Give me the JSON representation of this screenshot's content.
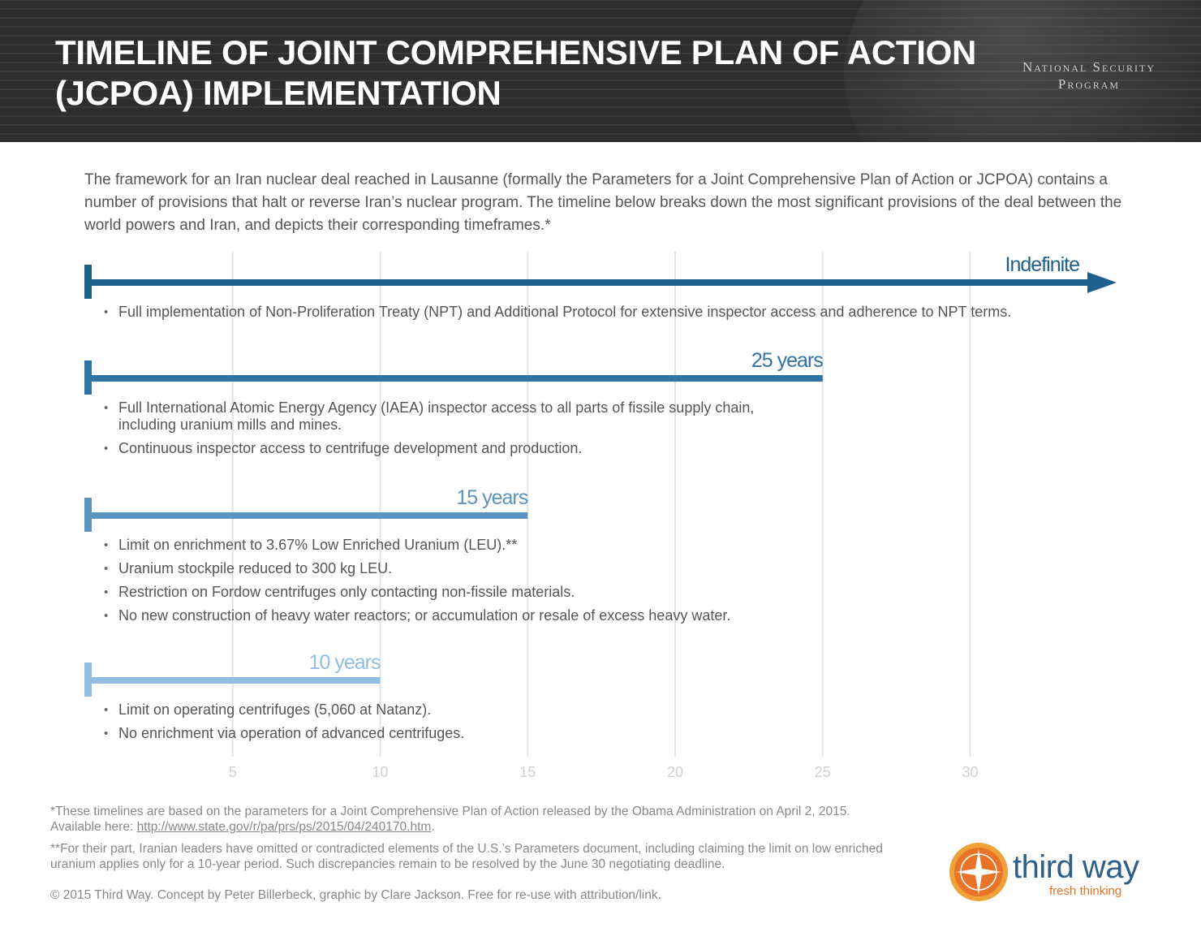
{
  "header": {
    "title_line1": "TIMELINE OF JOINT COMPREHENSIVE PLAN OF ACTION",
    "title_line2": "(JCPOA) IMPLEMENTATION",
    "org_line1": "National Security",
    "org_line2": "Program"
  },
  "intro": "The framework for an Iran nuclear deal reached in Lausanne (formally the Parameters for a Joint Comprehensive Plan of Action or JCPOA) contains a number of provisions that halt or reverse Iran’s nuclear program. The timeline below breaks down the most significant provisions of the deal between the world powers and Iran, and depicts their corresponding timeframes.*",
  "chart_data": {
    "type": "bar",
    "orientation": "horizontal",
    "x_ticks": [
      5,
      10,
      15,
      20,
      25,
      30
    ],
    "xlim": [
      0,
      33
    ],
    "grid": true,
    "series": [
      {
        "label": "Indefinite",
        "value": null,
        "indefinite": true,
        "color": "#1f5f8b",
        "bullets": [
          "Full implementation of Non-Proliferation Treaty (NPT) and Additional Protocol for extensive inspector access and adherence to NPT terms."
        ]
      },
      {
        "label": "25 years",
        "value": 25,
        "color": "#3173a3",
        "bullets": [
          "Full International Atomic Energy Agency (IAEA) inspector access to all parts of fissile supply chain, including uranium mills and mines.",
          "Continuous inspector access to centrifuge development and production."
        ]
      },
      {
        "label": "15 years",
        "value": 15,
        "color": "#5a94bf",
        "bullets": [
          "Limit on enrichment to 3.67% Low Enriched Uranium (LEU).**",
          "Uranium stockpile reduced to 300 kg LEU.",
          "Restriction on Fordow centrifuges only contacting non-fissile materials.",
          "No new construction of heavy water reactors; or accumulation or resale of excess heavy water."
        ]
      },
      {
        "label": "10 years",
        "value": 10,
        "color": "#92bde0",
        "bullets": [
          "Limit on operating centrifuges (5,060 at Natanz).",
          "No enrichment via operation of advanced centrifuges."
        ]
      }
    ]
  },
  "footnotes": {
    "note1_text": "*These timelines are based on the parameters for a Joint Comprehensive Plan of Action released by the Obama Administration on April 2, 2015.",
    "note1_prefix": "Available here: ",
    "note1_link": "http://www.state.gov/r/pa/prs/ps/2015/04/240170.htm",
    "note2": "**For their part, Iranian leaders have omitted or contradicted elements of the U.S.’s Parameters document, including claiming the limit on low enriched uranium applies only for a 10-year period. Such discrepancies remain to be resolved by the June 30 negotiating deadline.",
    "copyright": "© 2015 Third Way. Concept by Peter Billerbeck, graphic by Clare Jackson. Free for re-use with attribution/link."
  },
  "logo": {
    "name": "third way",
    "tagline": "fresh thinking"
  }
}
